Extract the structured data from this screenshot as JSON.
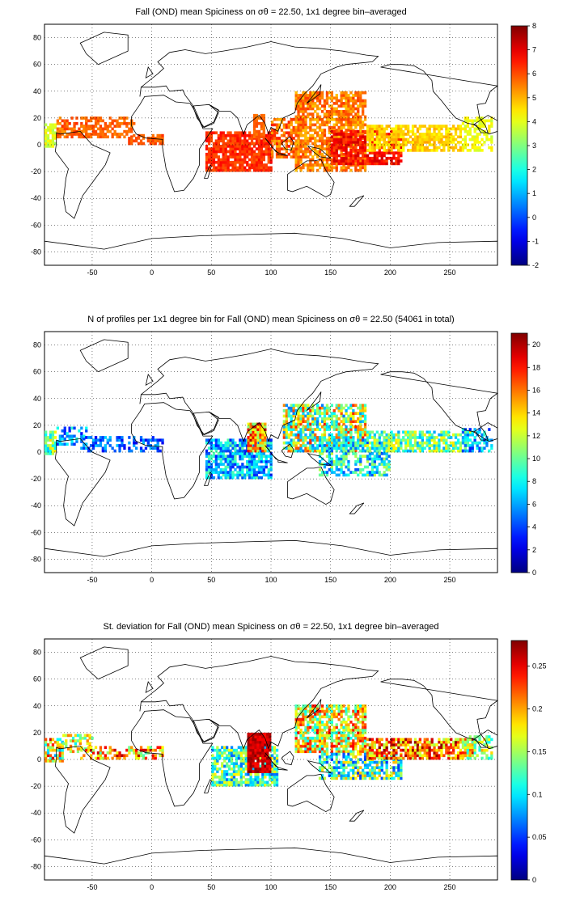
{
  "panels": [
    {
      "title": "Fall (OND) mean Spiciness on σθ = 22.50, 1x1 degree bin–averaged",
      "colorbar_ticks": [
        "-2",
        "-1",
        "0",
        "1",
        "2",
        "3",
        "4",
        "5",
        "6",
        "7",
        "8"
      ],
      "colorbar_min": -2,
      "colorbar_max": 8
    },
    {
      "title": "N of profiles per 1x1 degree bin for Fall (OND) mean Spiciness on σθ = 22.50 (54061 in total)",
      "colorbar_ticks": [
        "0",
        "2",
        "4",
        "6",
        "8",
        "10",
        "12",
        "14",
        "16",
        "18",
        "20"
      ],
      "colorbar_min": 0,
      "colorbar_max": 21
    },
    {
      "title": "St. deviation for Fall (OND) mean Spiciness on σθ = 22.50, 1x1 degree bin–averaged",
      "colorbar_ticks": [
        "0",
        "0.05",
        "0.1",
        "0.15",
        "0.2",
        "0.25"
      ],
      "colorbar_min": 0,
      "colorbar_max": 0.28
    }
  ],
  "x_ticks": [
    "-50",
    "0",
    "50",
    "100",
    "150",
    "200",
    "250"
  ],
  "y_ticks": [
    "80",
    "60",
    "40",
    "20",
    "0",
    "-20",
    "-40",
    "-60",
    "-80"
  ],
  "x_range": [
    -90,
    290
  ],
  "y_range": [
    -90,
    90
  ],
  "colormap": "jet"
}
